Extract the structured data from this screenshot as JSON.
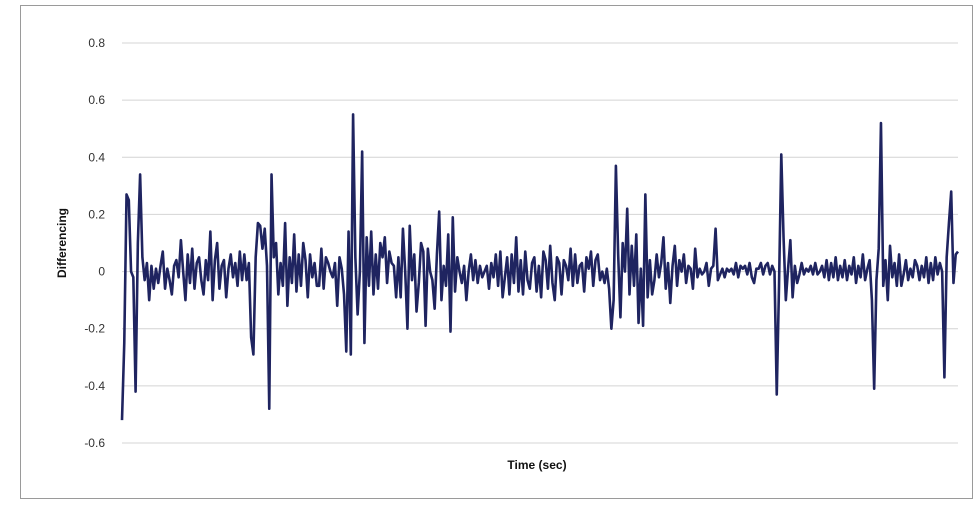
{
  "chart_data": {
    "type": "line",
    "title": "",
    "xlabel": "Time (sec)",
    "ylabel": "Differencing",
    "ylim": [
      -0.6,
      0.8
    ],
    "yticks": [
      0.8,
      0.6,
      0.4,
      0.2,
      0,
      -0.2,
      -0.4,
      -0.6
    ],
    "ytick_labels": [
      "0.8",
      "0.6",
      "0.4",
      "0.2",
      "0",
      "-0.2",
      "-0.4",
      "-0.6"
    ],
    "x_ticks_labeled": false,
    "grid": "horizontal",
    "legend": "none",
    "colors": {
      "line": "#1f2460",
      "grid": "#d4d4d4",
      "frame": "#9a9a9a"
    },
    "series": [
      {
        "values": [
          -0.52,
          -0.25,
          0.27,
          0.25,
          0.0,
          -0.02,
          -0.42,
          0.1,
          0.34,
          0.05,
          -0.03,
          0.03,
          -0.1,
          0.02,
          -0.06,
          0.01,
          -0.04,
          0.02,
          0.07,
          -0.06,
          0.01,
          -0.03,
          -0.08,
          0.02,
          0.04,
          -0.02,
          0.11,
          0.0,
          -0.1,
          0.06,
          -0.04,
          0.08,
          -0.06,
          0.03,
          0.05,
          -0.03,
          -0.08,
          0.04,
          -0.03,
          0.14,
          -0.1,
          0.04,
          0.1,
          -0.06,
          0.02,
          0.04,
          -0.09,
          0.01,
          0.06,
          -0.02,
          0.03,
          -0.05,
          0.07,
          -0.03,
          0.06,
          -0.03,
          0.03,
          -0.23,
          -0.29,
          0.05,
          0.17,
          0.16,
          0.08,
          0.15,
          0.02,
          -0.48,
          0.34,
          0.05,
          0.1,
          -0.08,
          0.03,
          -0.05,
          0.17,
          -0.12,
          0.05,
          -0.04,
          0.13,
          -0.07,
          0.06,
          -0.05,
          0.1,
          0.04,
          -0.09,
          0.06,
          -0.02,
          0.03,
          -0.05,
          -0.05,
          0.08,
          -0.06,
          0.05,
          0.03,
          0.0,
          -0.02,
          0.03,
          -0.12,
          0.05,
          0.01,
          -0.08,
          -0.28,
          0.14,
          -0.29,
          0.55,
          0.05,
          -0.15,
          0.0,
          0.42,
          -0.25,
          0.12,
          -0.05,
          0.14,
          -0.08,
          0.06,
          -0.06,
          0.1,
          0.05,
          0.12,
          -0.04,
          0.07,
          0.03,
          0.02,
          -0.09,
          0.05,
          -0.09,
          0.15,
          0.0,
          -0.2,
          0.16,
          -0.03,
          0.06,
          -0.14,
          -0.04,
          0.1,
          0.07,
          -0.19,
          0.08,
          0.0,
          -0.03,
          -0.13,
          0.06,
          0.21,
          -0.1,
          0.02,
          -0.05,
          0.13,
          -0.21,
          0.19,
          -0.07,
          0.05,
          0.0,
          -0.04,
          0.02,
          -0.1,
          0.0,
          0.06,
          -0.03,
          0.04,
          -0.04,
          0.02,
          -0.02,
          0.0,
          0.02,
          -0.06,
          0.03,
          -0.02,
          0.06,
          -0.05,
          0.07,
          -0.09,
          -0.02,
          0.05,
          -0.08,
          0.06,
          -0.04,
          0.12,
          -0.07,
          0.04,
          -0.08,
          0.07,
          -0.03,
          -0.06,
          0.03,
          0.05,
          -0.07,
          0.02,
          -0.09,
          0.07,
          0.04,
          -0.06,
          0.09,
          -0.04,
          -0.1,
          0.05,
          0.03,
          -0.08,
          0.04,
          0.02,
          -0.03,
          0.08,
          -0.05,
          0.06,
          -0.04,
          0.02,
          0.03,
          -0.07,
          0.05,
          0.01,
          0.07,
          -0.05,
          0.04,
          0.06,
          -0.03,
          0.0,
          -0.04,
          0.01,
          -0.06,
          -0.2,
          -0.1,
          0.37,
          0.06,
          -0.16,
          0.1,
          0.0,
          0.22,
          -0.08,
          0.09,
          -0.05,
          0.13,
          -0.18,
          0.01,
          -0.19,
          0.27,
          -0.09,
          0.04,
          -0.08,
          -0.03,
          0.06,
          -0.02,
          0.03,
          0.12,
          -0.06,
          0.03,
          -0.11,
          0.02,
          0.09,
          -0.05,
          0.04,
          0.0,
          0.06,
          -0.04,
          0.02,
          0.01,
          -0.06,
          0.08,
          -0.02,
          0.01,
          -0.01,
          0.0,
          0.03,
          -0.05,
          0.01,
          0.02,
          0.15,
          -0.03,
          -0.01,
          0.01,
          -0.02,
          0.01,
          0.0,
          0.01,
          -0.01,
          0.03,
          -0.02,
          0.02,
          0.01,
          0.02,
          -0.01,
          0.03,
          -0.02,
          -0.04,
          0.01,
          0.01,
          0.03,
          -0.01,
          0.02,
          0.03,
          -0.01,
          0.02,
          0.0,
          -0.43,
          -0.05,
          0.41,
          0.12,
          -0.1,
          0.01,
          0.11,
          -0.09,
          0.02,
          -0.04,
          -0.01,
          0.03,
          -0.01,
          0.01,
          0.0,
          0.02,
          -0.01,
          0.03,
          -0.01,
          0.0,
          0.02,
          -0.02,
          0.04,
          -0.03,
          0.03,
          -0.02,
          0.05,
          -0.03,
          0.02,
          -0.02,
          0.04,
          -0.03,
          0.02,
          -0.01,
          0.05,
          -0.04,
          0.02,
          -0.02,
          0.06,
          -0.03,
          0.01,
          0.04,
          -0.1,
          -0.41,
          -0.03,
          0.08,
          0.52,
          -0.05,
          0.04,
          -0.1,
          0.09,
          -0.02,
          0.03,
          -0.05,
          0.06,
          -0.05,
          -0.01,
          0.04,
          -0.03,
          0.01,
          -0.02,
          0.04,
          0.02,
          -0.03,
          0.02,
          -0.02,
          0.05,
          -0.04,
          0.03,
          -0.03,
          0.05,
          -0.01,
          0.03,
          0.0,
          -0.37,
          0.05,
          0.17,
          0.28,
          -0.04,
          0.06,
          0.07
        ]
      }
    ]
  }
}
